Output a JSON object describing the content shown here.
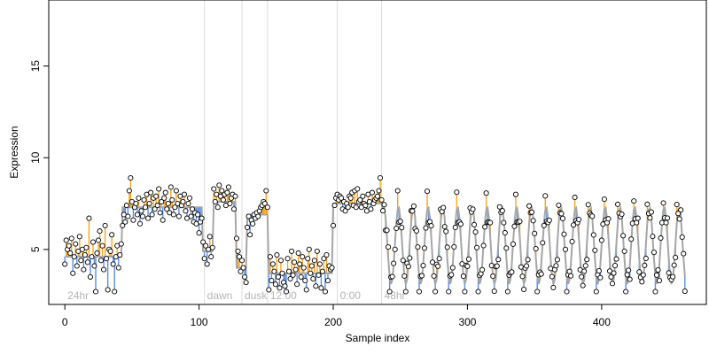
{
  "chart_data": {
    "type": "scatter",
    "title": "",
    "xlabel": "Sample index",
    "ylabel": "Expression",
    "xlim": [
      -12,
      478
    ],
    "ylim": [
      2.0,
      18.6
    ],
    "x_ticks": [
      0,
      100,
      200,
      300,
      400
    ],
    "y_ticks": [
      5,
      10,
      15
    ],
    "grid": false,
    "legend": "none",
    "colors": {
      "fitted_line": "#a6a6a6",
      "segment_up": "#f5a623",
      "segment_down": "#5a8fe6",
      "point_fill": "#ffffff",
      "point_edge": "#000000",
      "region_line": "#dcdcdc",
      "region_label": "#b5b5b5"
    },
    "regions": [
      {
        "label": "24hr",
        "start": 0
      },
      {
        "label": "dawn",
        "start": 104
      },
      {
        "label": "dusk",
        "start": 132
      },
      {
        "label": "12:00",
        "start": 151
      },
      {
        "label": "0:00",
        "start": 203
      },
      {
        "label": "48hr",
        "start": 236
      }
    ],
    "segments": [
      {
        "x0": 0,
        "x1": 42,
        "fit": 4.6,
        "obs": [
          4.2,
          5.5,
          5.0,
          5.2,
          4.8,
          5.6,
          3.7,
          4.6,
          5.3,
          4.1,
          4.9,
          5.7,
          4.4,
          5.0,
          3.9,
          4.7,
          5.1,
          4.3,
          6.7,
          3.5,
          4.6,
          5.4,
          4.1,
          2.7,
          4.8,
          5.5,
          6.0,
          4.4,
          5.2,
          3.9,
          6.3,
          4.5,
          2.8,
          5.0,
          4.9,
          5.8,
          4.2,
          2.7,
          4.6,
          5.2,
          4.0,
          4.7,
          5.3
        ]
      },
      {
        "x0": 43,
        "x1": 102,
        "fit": 7.3,
        "obs": [
          6.3,
          6.9,
          6.5,
          7.4,
          6.8,
          8.2,
          8.9,
          7.6,
          6.6,
          7.3,
          7.5,
          6.9,
          7.8,
          6.4,
          7.1,
          6.8,
          7.7,
          7.3,
          8.0,
          6.7,
          7.5,
          8.1,
          6.9,
          7.8,
          7.2,
          7.9,
          7.4,
          8.3,
          7.0,
          7.6,
          6.6,
          7.8,
          8.1,
          7.2,
          7.5,
          7.0,
          8.4,
          7.7,
          6.9,
          7.3,
          8.2,
          7.5,
          6.8,
          7.9,
          7.4,
          7.6,
          8.0,
          7.1,
          6.7,
          7.5,
          7.8,
          6.8,
          7.2,
          6.5,
          7.0,
          6.4,
          6.9,
          5.9,
          6.5,
          6.7
        ]
      },
      {
        "x0": 103,
        "x1": 110,
        "fit": 4.9,
        "obs": [
          5.4,
          4.5,
          5.2,
          4.2,
          5.0,
          5.7,
          4.6,
          5.1
        ]
      },
      {
        "x0": 111,
        "x1": 127,
        "fit": 7.6,
        "obs": [
          8.3,
          7.6,
          8.0,
          7.3,
          8.5,
          7.9,
          8.2,
          7.7,
          8.0,
          7.4,
          8.1,
          8.4,
          7.5,
          7.8,
          8.0,
          7.2,
          7.9
        ]
      },
      {
        "x0": 128,
        "x1": 135,
        "fit": 4.0,
        "obs": [
          5.6,
          4.9,
          4.6,
          3.8,
          4.4,
          4.0,
          3.5,
          3.2
        ]
      },
      {
        "x0": 136,
        "x1": 151,
        "fit": 6.9,
        "obs": [
          6.2,
          6.8,
          5.8,
          6.6,
          6.4,
          6.9,
          6.7,
          7.0,
          6.8,
          7.1,
          7.3,
          7.4,
          7.6,
          7.5,
          8.2,
          7.3
        ]
      },
      {
        "x0": 152,
        "x1": 199,
        "fit": 3.7,
        "obs": [
          2.8,
          4.6,
          3.3,
          4.2,
          3.8,
          3.1,
          4.7,
          3.5,
          2.9,
          4.4,
          3.7,
          3.2,
          3.0,
          2.7,
          4.5,
          3.8,
          3.4,
          4.9,
          3.6,
          4.3,
          3.9,
          3.1,
          4.8,
          4.2,
          3.5,
          4.6,
          4.0,
          3.3,
          2.8,
          4.5,
          5.0,
          3.7,
          4.1,
          3.4,
          4.4,
          3.0,
          4.9,
          3.6,
          4.2,
          2.9,
          3.8,
          4.5,
          2.7,
          4.7,
          3.3,
          4.1,
          3.9,
          4.0
        ]
      },
      {
        "x0": 200,
        "x1": 236,
        "fit": 7.5,
        "obs": [
          6.3,
          7.4,
          7.8,
          8.0,
          7.7,
          7.9,
          7.8,
          7.2,
          7.6,
          7.1,
          7.5,
          7.3,
          7.9,
          7.8,
          8.1,
          7.4,
          8.2,
          7.3,
          8.3,
          7.6,
          7.7,
          7.3,
          7.9,
          7.5,
          7.4,
          7.1,
          8.0,
          7.6,
          7.2,
          8.1,
          7.5,
          7.7,
          7.8,
          7.9,
          8.2,
          8.9,
          7.7
        ]
      }
    ],
    "tail": {
      "x0": 237,
      "x1": 462,
      "period": 11,
      "phase": 1.2,
      "amp": 2.1,
      "mean": 5.2
    }
  }
}
